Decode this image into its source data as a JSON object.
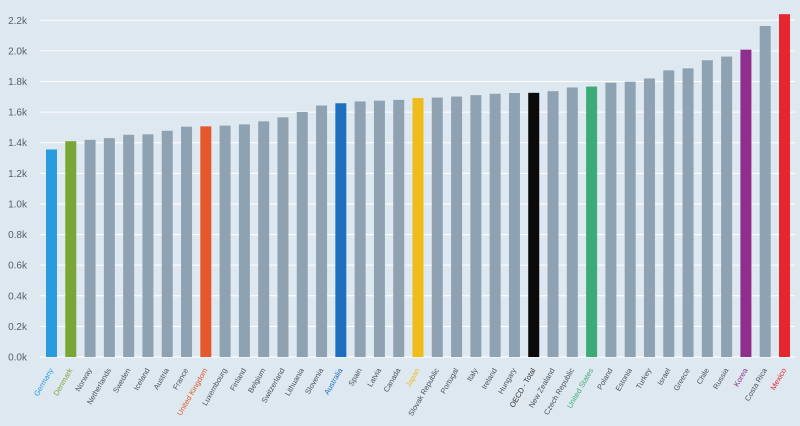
{
  "chart_data": {
    "type": "bar",
    "title": "",
    "xlabel": "",
    "ylabel": "",
    "ylim": [
      0,
      2300
    ],
    "y_ticks": [
      {
        "value": 0,
        "label": "0.0k"
      },
      {
        "value": 200,
        "label": "0.2k"
      },
      {
        "value": 400,
        "label": "0.4k"
      },
      {
        "value": 600,
        "label": "0.6k"
      },
      {
        "value": 800,
        "label": "0.8k"
      },
      {
        "value": 1000,
        "label": "1.0k"
      },
      {
        "value": 1200,
        "label": "1.2k"
      },
      {
        "value": 1400,
        "label": "1.4k"
      },
      {
        "value": 1600,
        "label": "1.6k"
      },
      {
        "value": 1800,
        "label": "1.8k"
      },
      {
        "value": 2000,
        "label": "2.0k"
      },
      {
        "value": 2200,
        "label": "2.2k"
      }
    ],
    "grid": true,
    "default_bar_color": "#8fa2b1",
    "categories": [
      "Germany",
      "Denmark",
      "Norway",
      "Netherlands",
      "Sweden",
      "Iceland",
      "Austria",
      "France",
      "United Kingdom",
      "Luxembourg",
      "Finland",
      "Belgium",
      "Switzerland",
      "Lithuania",
      "Slovenia",
      "Australia",
      "Spain",
      "Latvia",
      "Canada",
      "Japan",
      "Slovak Republic",
      "Portugal",
      "Italy",
      "Ireland",
      "Hungary",
      "OECD - Total",
      "New Zealand",
      "Czech Republic",
      "United States",
      "Poland",
      "Estonia",
      "Turkey",
      "Israel",
      "Greece",
      "Chile",
      "Russia",
      "Korea",
      "Costa Rica",
      "Mexico"
    ],
    "values": [
      1356,
      1410,
      1419,
      1430,
      1452,
      1455,
      1478,
      1505,
      1507,
      1512,
      1520,
      1540,
      1566,
      1601,
      1643,
      1658,
      1670,
      1675,
      1680,
      1692,
      1695,
      1702,
      1711,
      1720,
      1725,
      1726,
      1737,
      1761,
      1767,
      1792,
      1799,
      1820,
      1873,
      1886,
      1939,
      1963,
      2008,
      2163,
      2240
    ],
    "highlight_colors": {
      "Germany": "#2b9be0",
      "Denmark": "#7aa634",
      "United Kingdom": "#e4582c",
      "Australia": "#1f6fbf",
      "Japan": "#f0bc18",
      "OECD - Total": "#0a0a0a",
      "United States": "#3dab78",
      "Korea": "#8e2f8e",
      "Mexico": "#e5262f"
    },
    "default_label_color": "#4a5460"
  }
}
